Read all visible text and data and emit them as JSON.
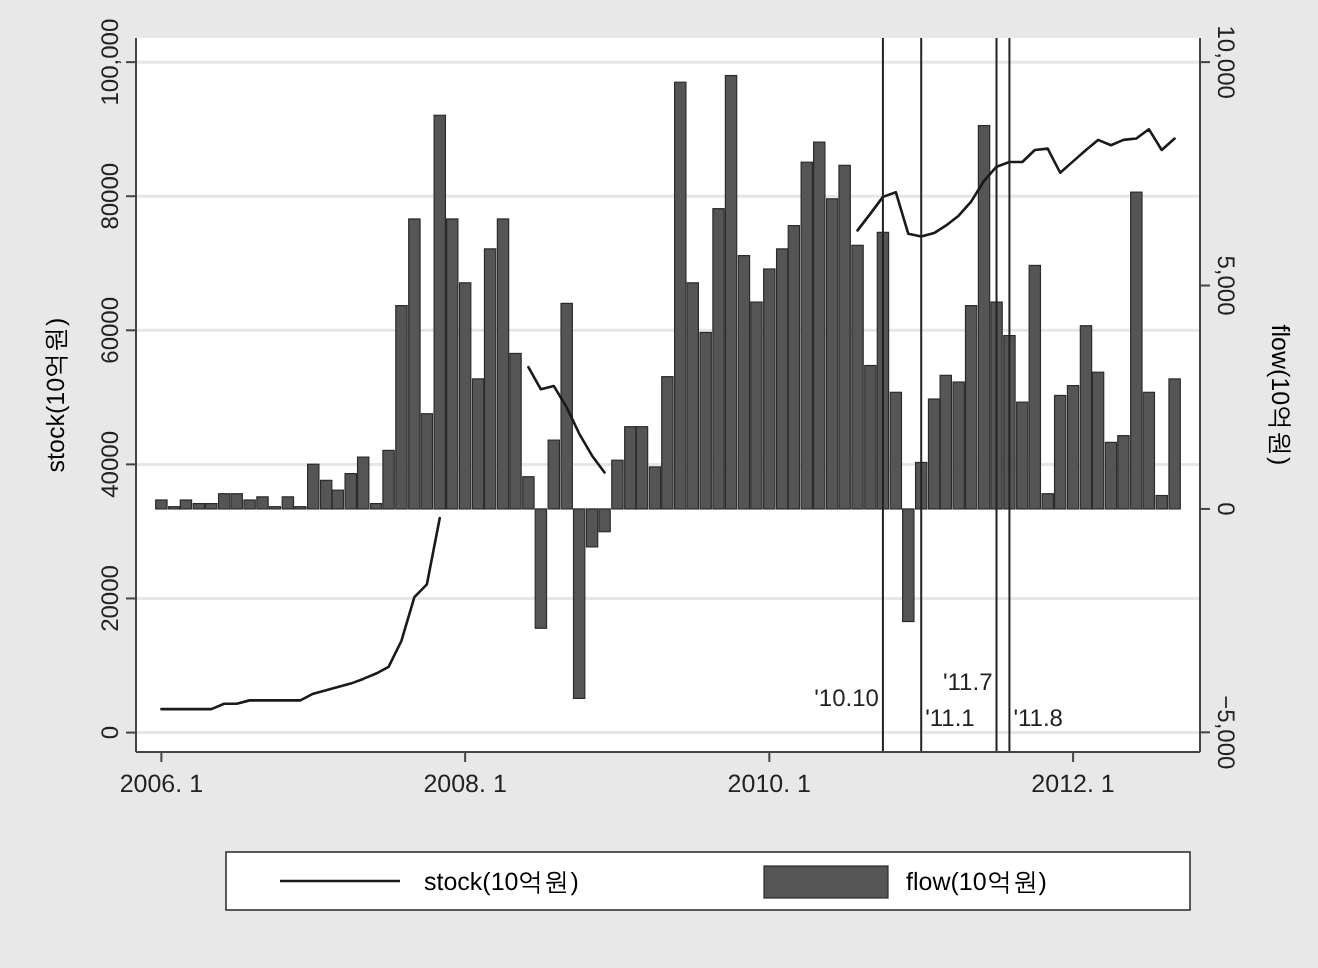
{
  "chart_data": {
    "type": "bar",
    "ylabel": "stock(10억원)",
    "y2label": "flow(10억원)",
    "x": [
      "2006-01",
      "2006-02",
      "2006-03",
      "2006-04",
      "2006-05",
      "2006-06",
      "2006-07",
      "2006-08",
      "2006-09",
      "2006-10",
      "2006-11",
      "2006-12",
      "2007-01",
      "2007-02",
      "2007-03",
      "2007-04",
      "2007-05",
      "2007-06",
      "2007-07",
      "2007-08",
      "2007-09",
      "2007-10",
      "2007-11",
      "2007-12",
      "2008-01",
      "2008-02",
      "2008-03",
      "2008-04",
      "2008-05",
      "2008-06",
      "2008-07",
      "2008-08",
      "2008-09",
      "2008-10",
      "2008-11",
      "2008-12",
      "2009-01",
      "2009-02",
      "2009-03",
      "2009-04",
      "2009-05",
      "2009-06",
      "2009-07",
      "2009-08",
      "2009-09",
      "2009-10",
      "2009-11",
      "2009-12",
      "2010-01",
      "2010-02",
      "2010-03",
      "2010-04",
      "2010-05",
      "2010-06",
      "2010-07",
      "2010-08",
      "2010-09",
      "2010-10",
      "2010-11",
      "2010-12",
      "2011-01",
      "2011-02",
      "2011-03",
      "2011-04",
      "2011-05",
      "2011-06",
      "2011-07",
      "2011-08",
      "2011-09",
      "2011-10",
      "2011-11",
      "2011-12",
      "2012-01",
      "2012-02",
      "2012-03",
      "2012-04",
      "2012-05",
      "2012-06",
      "2012-07",
      "2012-08",
      "2012-09"
    ],
    "series": [
      {
        "name": "stock(10억원)",
        "type": "line",
        "axis": "y",
        "color": "#1a1a1a",
        "values": [
          3500,
          3500,
          3500,
          3500,
          3500,
          4300,
          4300,
          4800,
          4800,
          4800,
          4800,
          4800,
          5800,
          6300,
          6800,
          7300,
          8000,
          8800,
          9800,
          13700,
          20200,
          22100,
          32000,
          null,
          null,
          null,
          null,
          null,
          null,
          54500,
          51200,
          51700,
          48500,
          44600,
          41300,
          38800,
          null,
          null,
          null,
          null,
          null,
          null,
          null,
          null,
          null,
          null,
          null,
          null,
          null,
          null,
          null,
          null,
          null,
          null,
          null,
          74900,
          77400,
          79900,
          80600,
          74400,
          74000,
          74500,
          75600,
          77100,
          79200,
          82300,
          84400,
          85100,
          85100,
          86900,
          87100,
          83500,
          85200,
          86900,
          88400,
          87600,
          88400,
          88600,
          90000,
          86900,
          88600
        ]
      },
      {
        "name": "flow(10억원)",
        "axis": "y2",
        "color": "#555555",
        "values": [
          200,
          50,
          200,
          120,
          120,
          340,
          340,
          200,
          270,
          50,
          270,
          50,
          1000,
          640,
          420,
          790,
          1160,
          120,
          1310,
          4550,
          6490,
          2130,
          8810,
          6490,
          5060,
          2910,
          5820,
          6490,
          3480,
          720,
          -2670,
          1540,
          4600,
          -4240,
          -850,
          -510,
          1090,
          1840,
          1840,
          940,
          2960,
          9550,
          5060,
          3950,
          6720,
          9700,
          5670,
          4630,
          5370,
          5820,
          6340,
          7760,
          8210,
          6940,
          7690,
          5900,
          3210,
          6190,
          2610,
          -2520,
          1040,
          2460,
          2990,
          2840,
          4550,
          8580,
          4630,
          3880,
          2390,
          5450,
          340,
          2540,
          2760,
          4100,
          3060,
          1490,
          1640,
          7090,
          2610,
          300,
          2910
        ]
      }
    ],
    "xlim": [
      "2005-11",
      "2012-11"
    ],
    "xticks": [
      {
        "value": "2006-01",
        "label": "2006. 1"
      },
      {
        "value": "2008-01",
        "label": "2008. 1"
      },
      {
        "value": "2010-01",
        "label": "2010. 1"
      },
      {
        "value": "2012-01",
        "label": "2012. 1"
      }
    ],
    "ylim": [
      -2900,
      103600
    ],
    "yticks": [
      0,
      20000,
      40000,
      60000,
      80000,
      {
        "value": 100000,
        "label": "100,000"
      }
    ],
    "y2lim": [
      -5440,
      10540
    ],
    "y2ticks": [
      {
        "value": -5000,
        "label": "−5,000"
      },
      0,
      {
        "value": 5000,
        "label": "5,000"
      },
      {
        "value": 10000,
        "label": "10,000"
      }
    ],
    "ref_lines": [
      {
        "axis": "x",
        "value": "2010-10",
        "label": "'10.10"
      },
      {
        "axis": "x",
        "value": "2011-01",
        "label": "'11.1"
      },
      {
        "axis": "x",
        "value": "2011-07",
        "label": "'11.7"
      },
      {
        "axis": "x",
        "value": "2011-08",
        "label": "'11.8"
      }
    ],
    "grid": "y",
    "legend": "bottom"
  }
}
